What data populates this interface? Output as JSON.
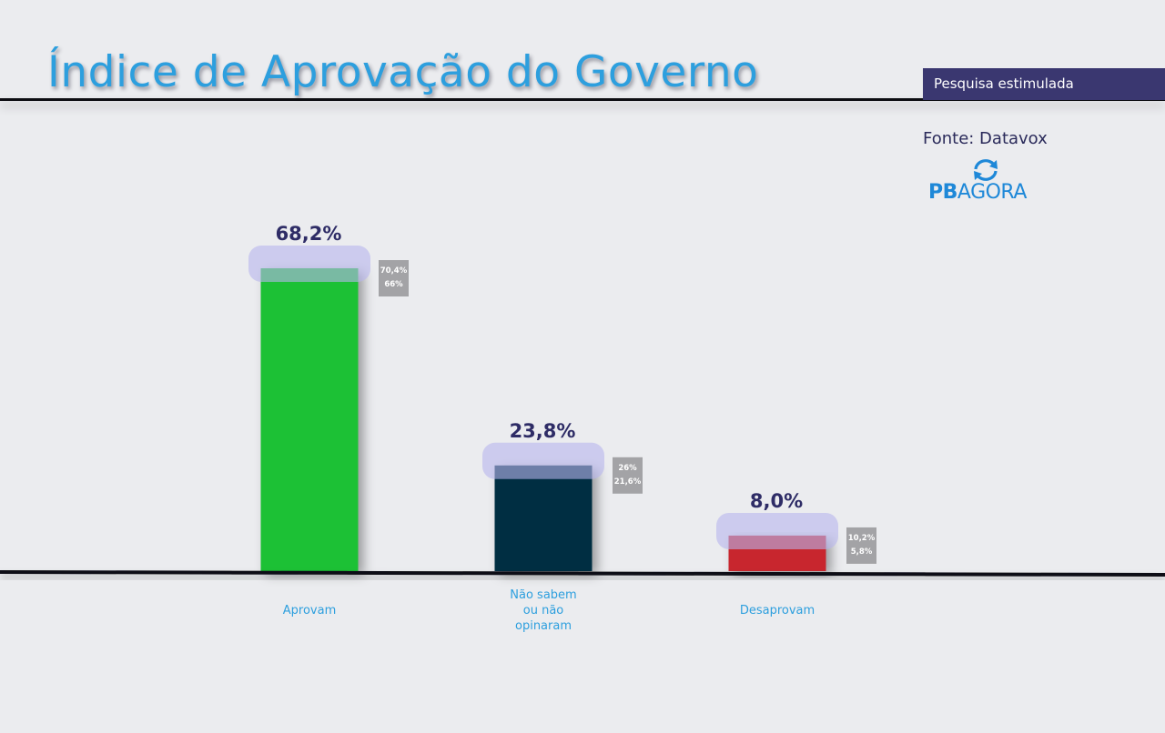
{
  "title": "Índice de Aprovação do Governo",
  "tag": "Pesquisa estimulada",
  "source": "Fonte: Datavox",
  "logo": {
    "brand_bold": "PB",
    "brand_regular": "AGORA",
    "icon": "refresh-arrows-icon"
  },
  "colors": {
    "title": "#2d9fde",
    "tag_bg": "#3a3770",
    "value_text": "#2e2c66"
  },
  "chart_data": {
    "type": "bar",
    "categories": [
      "Aprovam",
      "Não sabem\nou não\nopinaram",
      "Desaprovam"
    ],
    "values": [
      68.2,
      23.8,
      8.0
    ],
    "value_labels": [
      "68,2%",
      "23,8%",
      "8,0%"
    ],
    "range_labels": [
      [
        "70,4%",
        "66%"
      ],
      [
        "26%",
        "21,6%"
      ],
      [
        "10,2%",
        "5,8%"
      ]
    ],
    "colors": [
      "#1fc136",
      "#062d42",
      "#c8262f"
    ],
    "title": "Índice de Aprovação do Governo",
    "xlabel": "",
    "ylabel": "",
    "ylim": [
      0,
      72
    ],
    "grid": false
  }
}
